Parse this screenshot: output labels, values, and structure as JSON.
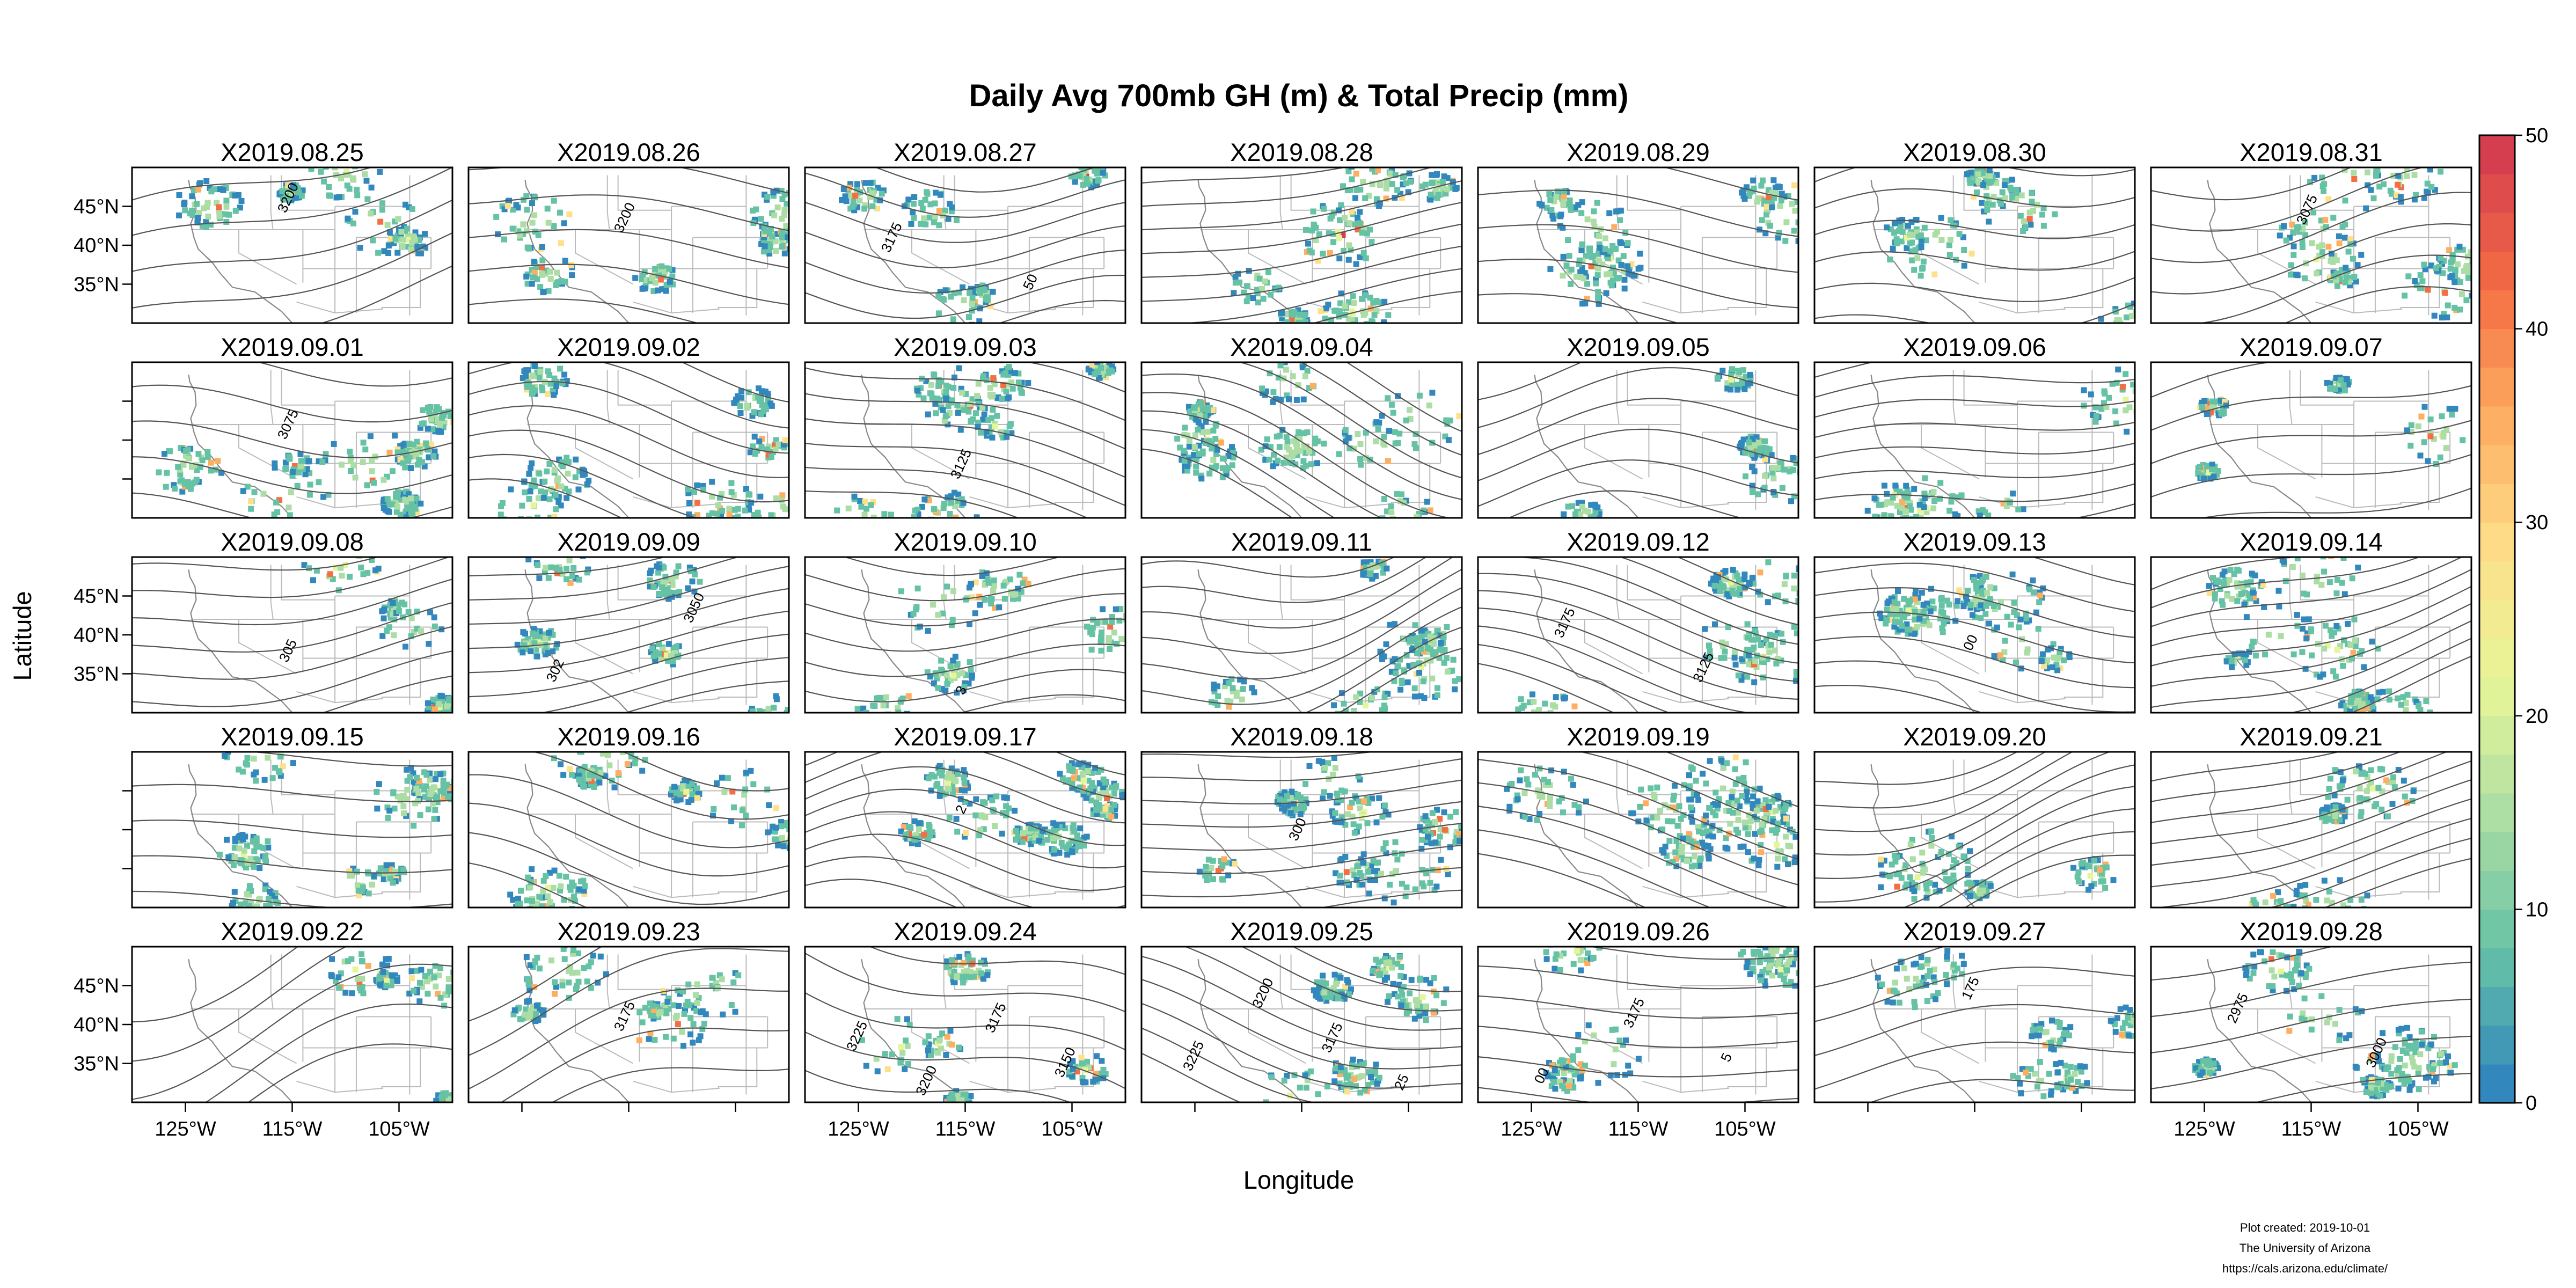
{
  "chart_data": {
    "type": "heatmap",
    "title": "Daily Avg 700mb GH (m) & Total Precip (mm)",
    "xlabel": "Longitude",
    "ylabel": "Latitude",
    "x_range": [
      -130,
      -100
    ],
    "y_range": [
      30,
      50
    ],
    "x_ticks": [
      -125,
      -115,
      -105
    ],
    "x_tick_labels": [
      "125°W",
      "115°W",
      "105°W"
    ],
    "y_ticks": [
      35,
      40,
      45
    ],
    "y_tick_labels": [
      "35°N",
      "40°N",
      "45°N"
    ],
    "colorbar": {
      "min": 0,
      "max": 50,
      "ticks": [
        0,
        10,
        20,
        30,
        40,
        50
      ],
      "tick_labels": [
        "0",
        "10",
        "20",
        "30",
        "40",
        "50"
      ],
      "colors": [
        "#3288bd",
        "#66c2a5",
        "#abdda4",
        "#e6f598",
        "#fee08b",
        "#fdae61",
        "#f46d43",
        "#d53e4f"
      ]
    },
    "panels": [
      {
        "date": "X2019.08.25",
        "contour_labels": [
          "3200"
        ]
      },
      {
        "date": "X2019.08.26",
        "contour_labels": [
          "3200"
        ]
      },
      {
        "date": "X2019.08.27",
        "contour_labels": [
          "3175",
          "50"
        ]
      },
      {
        "date": "X2019.08.28",
        "contour_labels": []
      },
      {
        "date": "X2019.08.29",
        "contour_labels": []
      },
      {
        "date": "X2019.08.30",
        "contour_labels": []
      },
      {
        "date": "X2019.08.31",
        "contour_labels": [
          "3075"
        ]
      },
      {
        "date": "X2019.09.01",
        "contour_labels": [
          "3075"
        ]
      },
      {
        "date": "X2019.09.02",
        "contour_labels": []
      },
      {
        "date": "X2019.09.03",
        "contour_labels": [
          "3125"
        ]
      },
      {
        "date": "X2019.09.04",
        "contour_labels": []
      },
      {
        "date": "X2019.09.05",
        "contour_labels": []
      },
      {
        "date": "X2019.09.06",
        "contour_labels": []
      },
      {
        "date": "X2019.09.07",
        "contour_labels": []
      },
      {
        "date": "X2019.09.08",
        "contour_labels": [
          "305"
        ]
      },
      {
        "date": "X2019.09.09",
        "contour_labels": [
          "302",
          "3050"
        ]
      },
      {
        "date": "X2019.09.10",
        "contour_labels": [
          "3"
        ]
      },
      {
        "date": "X2019.09.11",
        "contour_labels": []
      },
      {
        "date": "X2019.09.12",
        "contour_labels": [
          "3175",
          "3125"
        ]
      },
      {
        "date": "X2019.09.13",
        "contour_labels": [
          "00"
        ]
      },
      {
        "date": "X2019.09.14",
        "contour_labels": []
      },
      {
        "date": "X2019.09.15",
        "contour_labels": []
      },
      {
        "date": "X2019.09.16",
        "contour_labels": []
      },
      {
        "date": "X2019.09.17",
        "contour_labels": [
          "2"
        ]
      },
      {
        "date": "X2019.09.18",
        "contour_labels": [
          "300"
        ]
      },
      {
        "date": "X2019.09.19",
        "contour_labels": []
      },
      {
        "date": "X2019.09.20",
        "contour_labels": []
      },
      {
        "date": "X2019.09.21",
        "contour_labels": []
      },
      {
        "date": "X2019.09.22",
        "contour_labels": []
      },
      {
        "date": "X2019.09.23",
        "contour_labels": [
          "3175"
        ]
      },
      {
        "date": "X2019.09.24",
        "contour_labels": [
          "3225",
          "3200",
          "3175",
          "3150"
        ]
      },
      {
        "date": "X2019.09.25",
        "contour_labels": [
          "3225",
          "3200",
          "3175",
          "25"
        ]
      },
      {
        "date": "X2019.09.26",
        "contour_labels": [
          "00",
          "3175",
          "5"
        ]
      },
      {
        "date": "X2019.09.27",
        "contour_labels": [
          "175"
        ]
      },
      {
        "date": "X2019.09.28",
        "contour_labels": [
          "2975",
          "3000"
        ]
      }
    ]
  },
  "credit": {
    "line1": "Plot created: 2019-10-01",
    "line2": "The University of Arizona",
    "line3": "https://cals.arizona.edu/climate/"
  },
  "colors": {
    "frame": "#000000",
    "contour": "#555555",
    "state_lines": "#bbbbbb",
    "coast": "#888888"
  }
}
